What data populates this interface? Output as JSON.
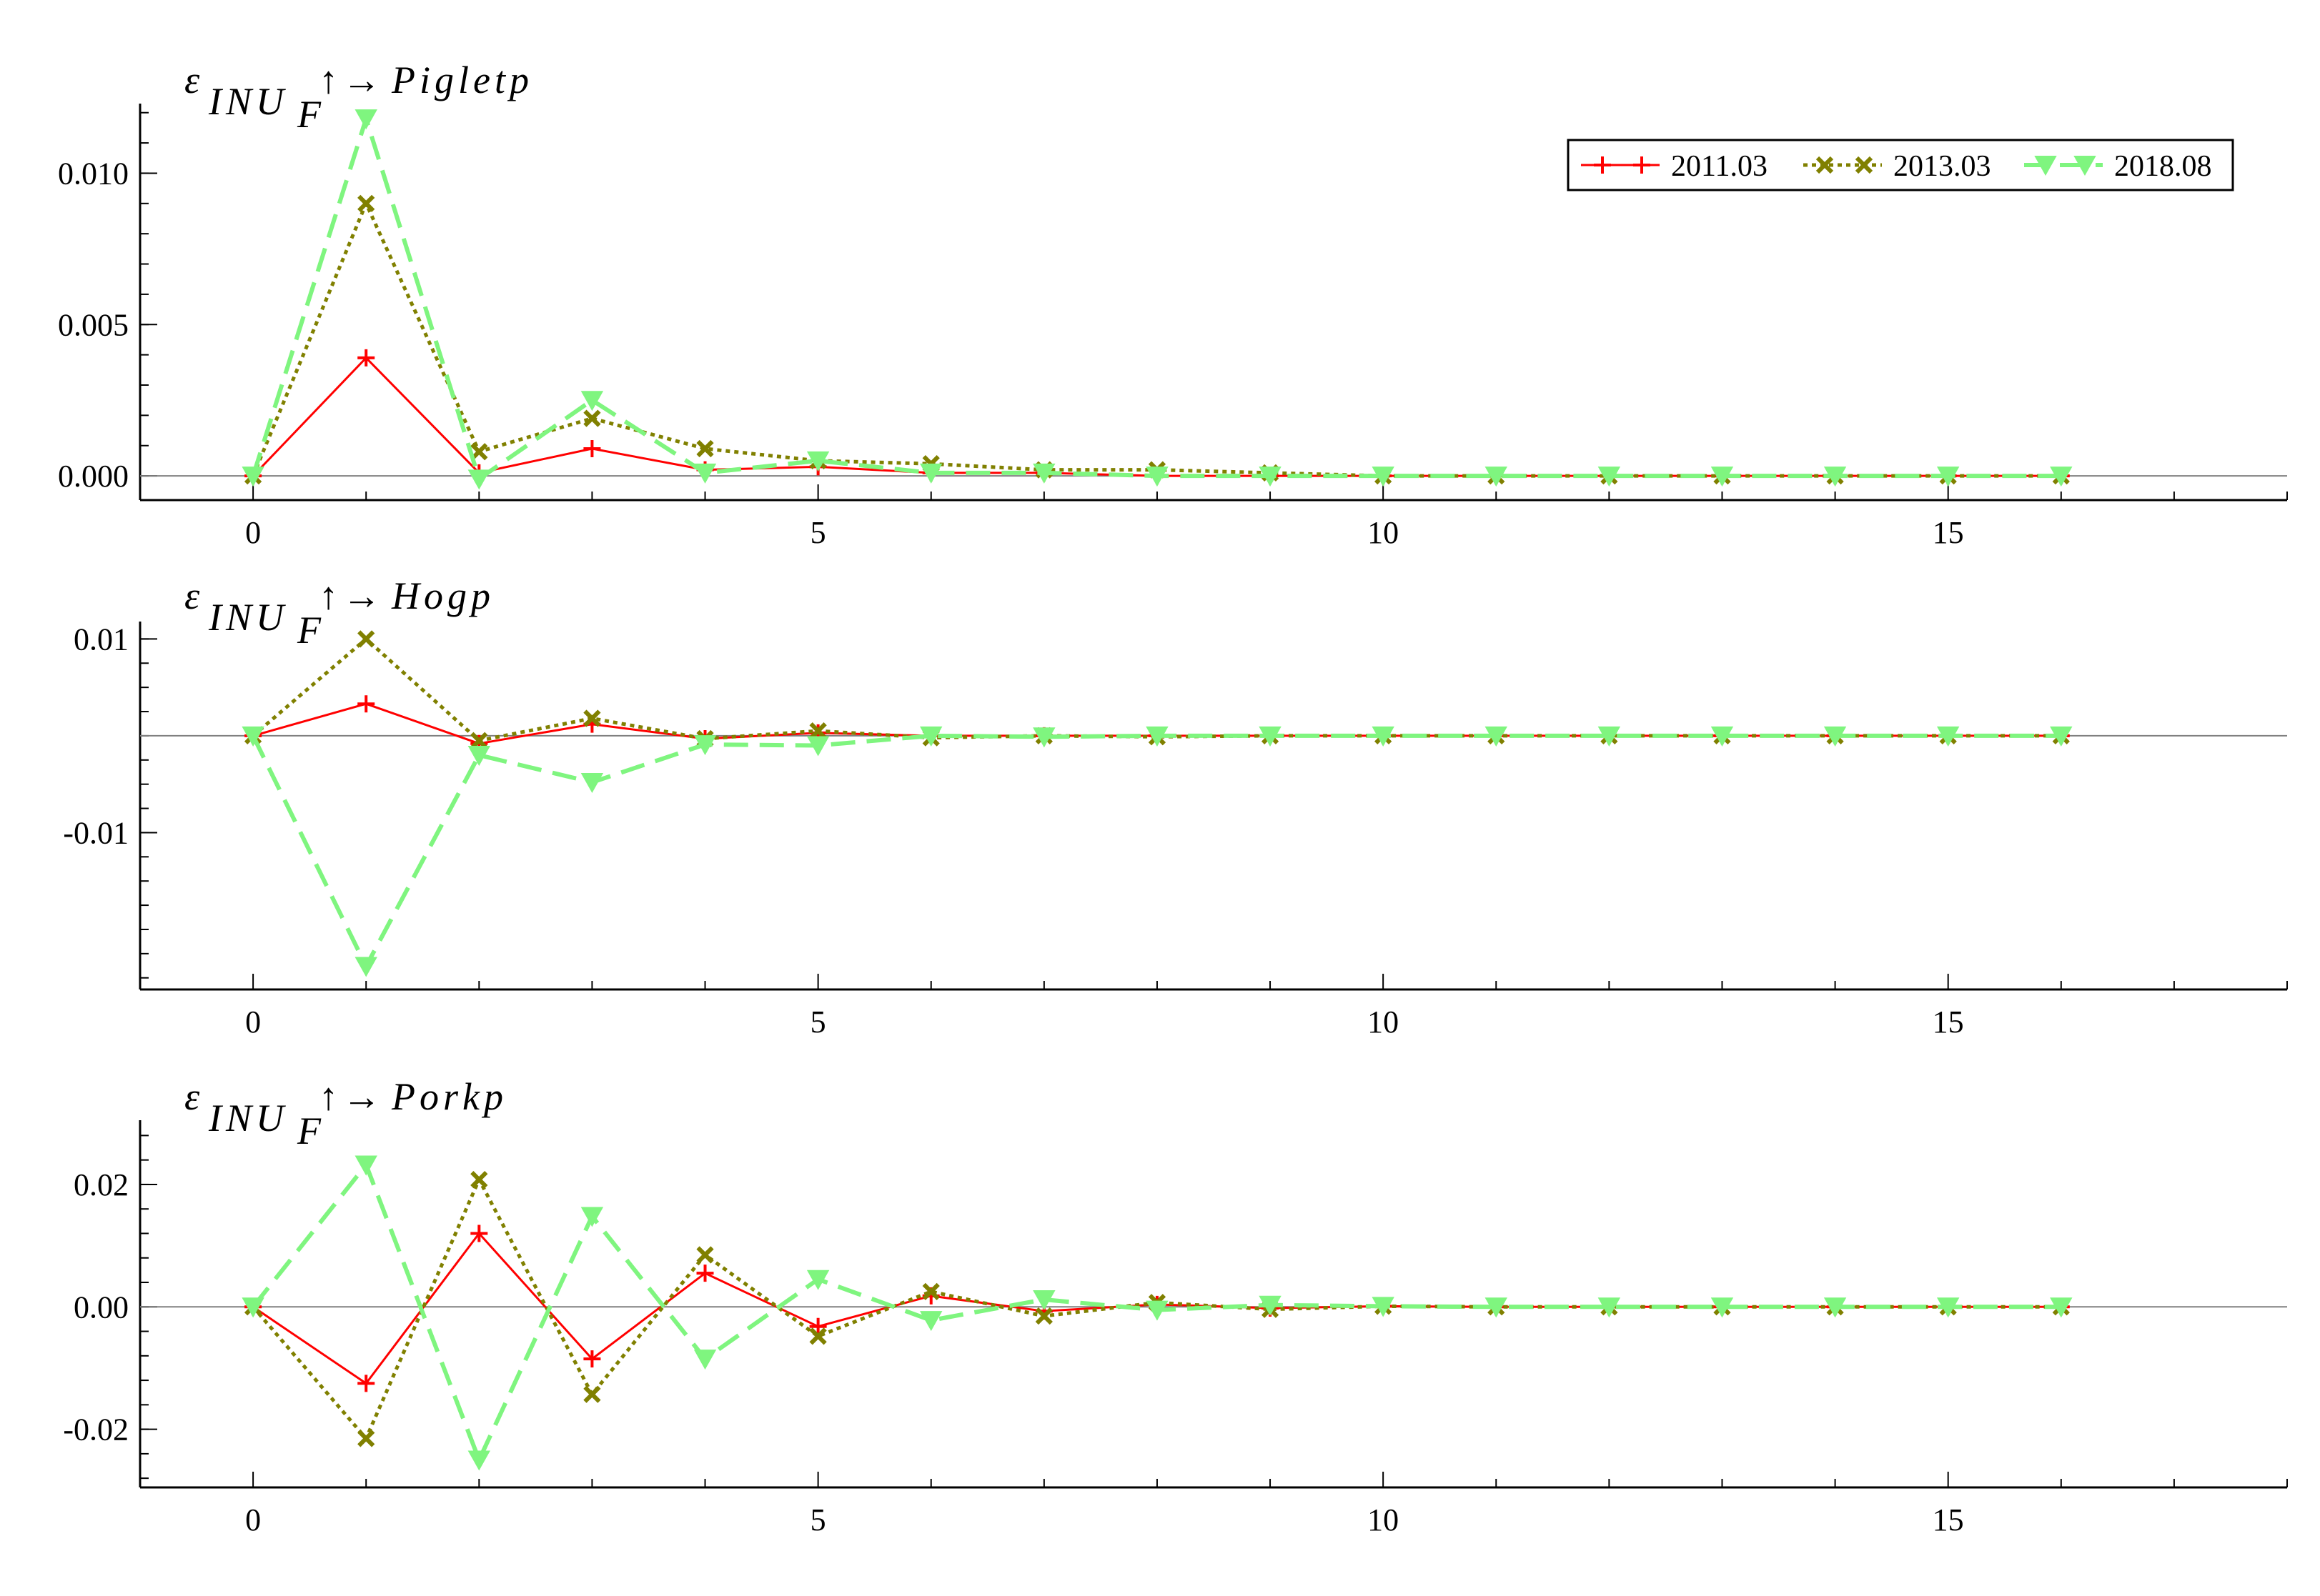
{
  "colors": {
    "s2011": "#ff0000",
    "s2013": "#808000",
    "s2018": "#7ff57f",
    "axis": "#000000",
    "zero_line": "#808080"
  },
  "legend": {
    "placement": "top-right of first panel",
    "entries": [
      "2011.03",
      "2013.03",
      "2018.08"
    ]
  },
  "chart_data": [
    {
      "type": "line",
      "title": {
        "epsilon": "ε",
        "subscript": "INU",
        "sub_sub": "F",
        "arrow": "↑→",
        "target": "Pigletp"
      },
      "xlim": [
        -1,
        18
      ],
      "ylim": [
        -0.0008,
        0.0123
      ],
      "xticks": [
        0,
        5,
        10,
        15
      ],
      "xtick_labels": [
        "0",
        "5",
        "10",
        "15"
      ],
      "yticks": [
        0.0,
        0.005,
        0.01
      ],
      "ytick_labels": [
        "0.000",
        "0.005",
        "0.010"
      ],
      "x": [
        0,
        1,
        2,
        3,
        4,
        5,
        6,
        7,
        8,
        9,
        10,
        11,
        12,
        13,
        14,
        15,
        16
      ],
      "series": [
        {
          "name": "2011.03",
          "style": "solid",
          "marker": "plus",
          "values": [
            0.0,
            0.0039,
            0.0001,
            0.0009,
            0.0002,
            0.0003,
            0.0001,
            0.0001,
            0.0,
            0.0,
            0.0,
            0.0,
            0.0,
            0.0,
            0.0,
            0.0,
            0.0
          ]
        },
        {
          "name": "2013.03",
          "style": "dotted",
          "marker": "x",
          "values": [
            0.0,
            0.009,
            0.0008,
            0.0019,
            0.0009,
            0.0005,
            0.0004,
            0.0002,
            0.0002,
            0.0001,
            0.0,
            0.0,
            0.0,
            0.0,
            0.0,
            0.0,
            0.0
          ]
        },
        {
          "name": "2018.08",
          "style": "dashed",
          "marker": "triangle",
          "values": [
            0.0,
            0.0118,
            -0.0001,
            0.0025,
            0.0001,
            0.0005,
            0.0001,
            0.0001,
            0.0,
            0.0,
            0.0,
            0.0,
            0.0,
            0.0,
            0.0,
            0.0,
            0.0
          ]
        }
      ]
    },
    {
      "type": "line",
      "title": {
        "epsilon": "ε",
        "subscript": "INU",
        "sub_sub": "F",
        "arrow": "↑→",
        "target": "Hogp"
      },
      "xlim": [
        -1,
        18
      ],
      "ylim": [
        -0.0262,
        0.0118
      ],
      "xticks": [
        0,
        5,
        10,
        15
      ],
      "xtick_labels": [
        "0",
        "5",
        "10",
        "15"
      ],
      "yticks": [
        -0.01,
        0.01
      ],
      "ytick_labels": [
        "-0.01",
        "0.01"
      ],
      "y_minor_step": 0.0025,
      "x": [
        0,
        1,
        2,
        3,
        4,
        5,
        6,
        7,
        8,
        9,
        10,
        11,
        12,
        13,
        14,
        15,
        16
      ],
      "series": [
        {
          "name": "2011.03",
          "style": "solid",
          "marker": "plus",
          "values": [
            0.0,
            0.0033,
            -0.0008,
            0.0012,
            -0.0003,
            0.0003,
            0.0,
            0.0,
            0.0,
            0.0,
            0.0,
            0.0,
            0.0,
            0.0,
            0.0,
            0.0,
            0.0
          ]
        },
        {
          "name": "2013.03",
          "style": "dotted",
          "marker": "x",
          "values": [
            0.0,
            0.01,
            -0.0005,
            0.0018,
            -0.0003,
            0.0005,
            -0.0002,
            0.0,
            -0.0001,
            0.0,
            0.0,
            0.0,
            0.0,
            0.0,
            0.0,
            0.0,
            0.0
          ]
        },
        {
          "name": "2018.08",
          "style": "dashed",
          "marker": "triangle",
          "values": [
            0.0,
            -0.0238,
            -0.002,
            -0.0048,
            -0.0009,
            -0.001,
            0.0,
            -0.0001,
            0.0,
            0.0,
            0.0,
            0.0,
            0.0,
            0.0,
            0.0,
            0.0,
            0.0
          ]
        }
      ]
    },
    {
      "type": "line",
      "title": {
        "epsilon": "ε",
        "subscript": "INU",
        "sub_sub": "F",
        "arrow": "↑→",
        "target": "Porkp"
      },
      "xlim": [
        -1,
        18
      ],
      "ylim": [
        -0.0295,
        0.0305
      ],
      "xticks": [
        0,
        5,
        10,
        15
      ],
      "xtick_labels": [
        "0",
        "5",
        "10",
        "15"
      ],
      "yticks": [
        -0.02,
        0.0,
        0.02
      ],
      "ytick_labels": [
        "-0.02",
        "0.00",
        "0.02"
      ],
      "x": [
        0,
        1,
        2,
        3,
        4,
        5,
        6,
        7,
        8,
        9,
        10,
        11,
        12,
        13,
        14,
        15,
        16
      ],
      "series": [
        {
          "name": "2011.03",
          "style": "solid",
          "marker": "plus",
          "values": [
            0.0,
            -0.0125,
            0.012,
            -0.0085,
            0.0055,
            -0.0032,
            0.0018,
            -0.0007,
            0.0004,
            -0.0002,
            0.0001,
            0.0,
            0.0,
            0.0,
            0.0,
            0.0,
            0.0
          ]
        },
        {
          "name": "2013.03",
          "style": "dotted",
          "marker": "x",
          "values": [
            0.0,
            -0.0215,
            0.0208,
            -0.0143,
            0.0085,
            -0.0048,
            0.0025,
            -0.0015,
            0.0007,
            -0.0004,
            0.0001,
            0.0,
            0.0,
            0.0,
            0.0,
            0.0,
            0.0
          ]
        },
        {
          "name": "2018.08",
          "style": "dashed",
          "marker": "triangle",
          "values": [
            0.0,
            0.0232,
            -0.025,
            0.0148,
            -0.0085,
            0.0045,
            -0.0022,
            0.0012,
            -0.0005,
            0.0003,
            0.0001,
            0.0,
            0.0,
            0.0,
            0.0,
            0.0,
            0.0
          ]
        }
      ]
    }
  ]
}
